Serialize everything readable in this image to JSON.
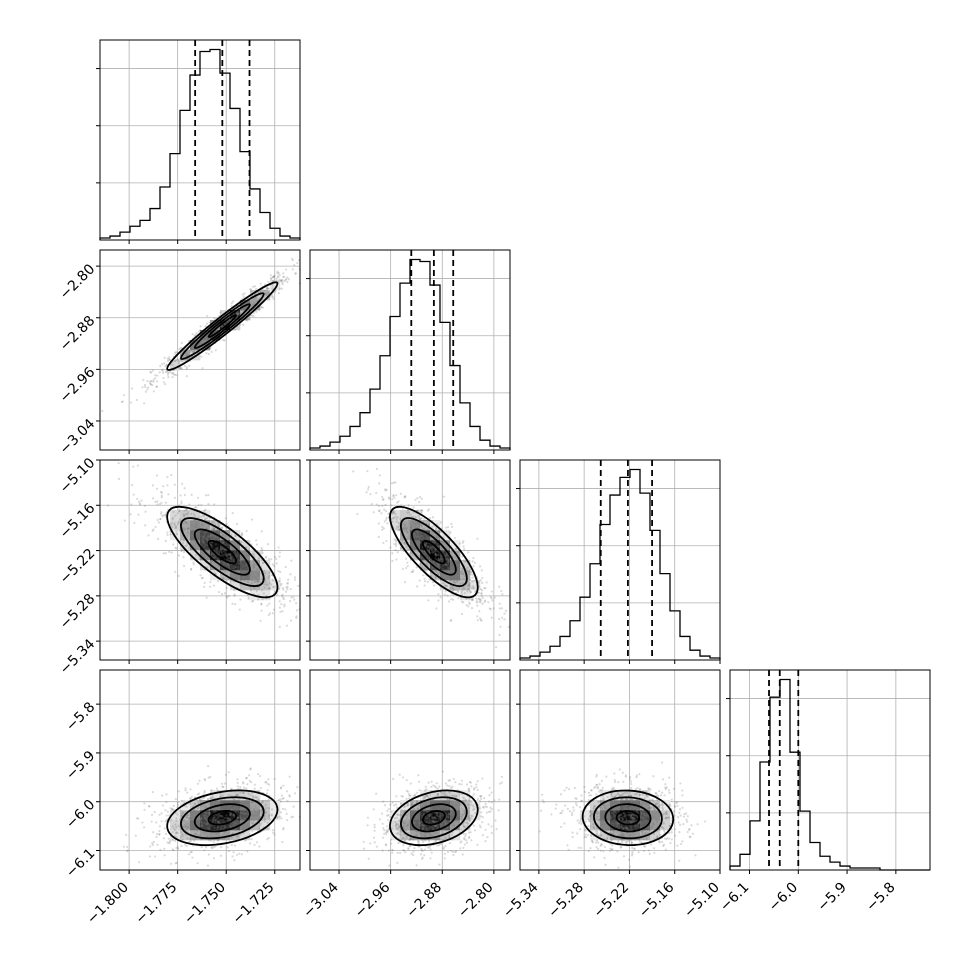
{
  "chart_data": {
    "type": "corner",
    "grid_on": true,
    "parameters": [
      {
        "range": [
          -1.815,
          -1.712
        ],
        "ticks": [
          -1.8,
          -1.775,
          -1.75,
          -1.725
        ],
        "tick_labels": [
          "−1.800",
          "−1.775",
          "−1.750",
          "−1.725"
        ],
        "mean": -1.752,
        "sd": 0.0142,
        "quantiles": [
          -1.766,
          -1.752,
          -1.738
        ],
        "hist": [
          1,
          2,
          4,
          7,
          10,
          16,
          27,
          44,
          66,
          84,
          96,
          97,
          85,
          67,
          45,
          26,
          14,
          6,
          2,
          1
        ]
      },
      {
        "range": [
          -3.085,
          -2.775
        ],
        "ticks": [
          -3.04,
          -2.96,
          -2.88,
          -2.8
        ],
        "tick_labels": [
          "−3.04",
          "−2.96",
          "−2.88",
          "−2.80"
        ],
        "mean": -2.893,
        "sd": 0.034,
        "quantiles": [
          -2.928,
          -2.893,
          -2.863
        ],
        "hist": [
          1,
          2,
          4,
          7,
          12,
          19,
          31,
          48,
          68,
          85,
          97,
          96,
          84,
          65,
          43,
          24,
          12,
          5,
          2,
          1
        ]
      },
      {
        "range": [
          -5.365,
          -5.1
        ],
        "ticks": [
          -5.34,
          -5.28,
          -5.22,
          -5.16,
          -5.1
        ],
        "tick_labels": [
          "−5.34",
          "−5.28",
          "−5.22",
          "−5.16",
          "−5.10"
        ],
        "mean": -5.222,
        "sd": 0.03,
        "quantiles": [
          -5.258,
          -5.222,
          -5.19
        ],
        "hist": [
          1,
          2,
          4,
          7,
          12,
          20,
          32,
          49,
          69,
          84,
          93,
          97,
          85,
          66,
          44,
          25,
          12,
          5,
          2,
          1
        ]
      },
      {
        "range": [
          -6.14,
          -5.73
        ],
        "ticks": [
          -6.1,
          -6.0,
          -5.9,
          -5.8
        ],
        "tick_labels": [
          "−6.1",
          "−6.0",
          "−5.9",
          "−5.8"
        ],
        "mean": -6.033,
        "sd": 0.028,
        "quantiles": [
          -6.06,
          -6.038,
          -6.0
        ],
        "hist": [
          2,
          8,
          25,
          55,
          88,
          97,
          60,
          30,
          14,
          7,
          4,
          2,
          1,
          1,
          1,
          0,
          0,
          0,
          0,
          0
        ]
      }
    ],
    "pairs": [
      {
        "row": 1,
        "col": 0,
        "corr": 0.97
      },
      {
        "row": 2,
        "col": 0,
        "corr": -0.78
      },
      {
        "row": 2,
        "col": 1,
        "corr": -0.78
      },
      {
        "row": 3,
        "col": 0,
        "corr": 0.3
      },
      {
        "row": 3,
        "col": 1,
        "corr": 0.3
      },
      {
        "row": 3,
        "col": 2,
        "corr": -0.05
      }
    ],
    "contour_levels_sigma": [
      0.5,
      1.0,
      1.5,
      2.0
    ]
  }
}
